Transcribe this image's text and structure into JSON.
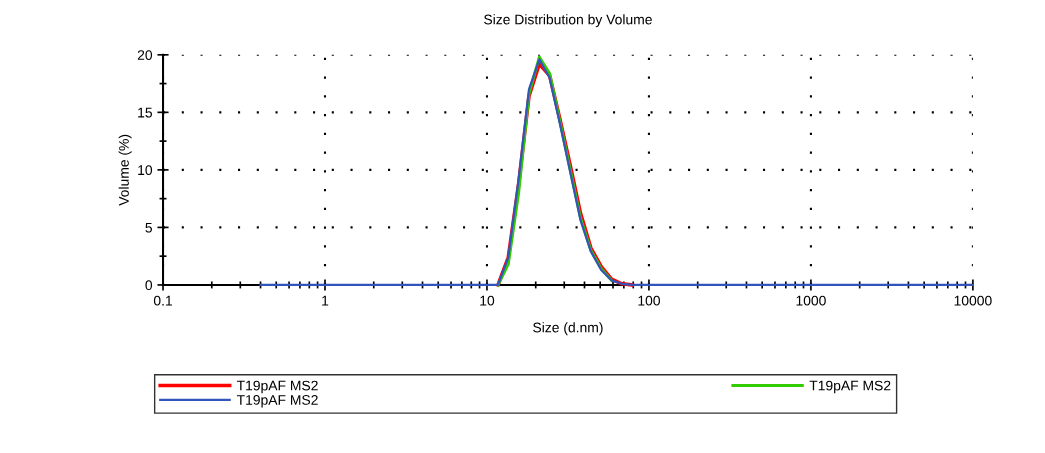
{
  "chart_data": {
    "type": "line",
    "title": "Size Distribution by Volume",
    "xlabel": "Size (d.nm)",
    "ylabel": "Volume (%)",
    "x": [
      0.4,
      0.4632,
      0.5365,
      0.6213,
      0.7195,
      0.8332,
      0.9649,
      1.117,
      1.294,
      1.499,
      1.736,
      2.01,
      2.328,
      2.696,
      3.122,
      3.615,
      4.187,
      4.849,
      5.615,
      6.503,
      7.531,
      8.721,
      10.1,
      11.7,
      13.54,
      15.69,
      18.17,
      21.04,
      24.36,
      28.21,
      32.67,
      37.84,
      43.82,
      50.75,
      58.77,
      68.06,
      78.82,
      91.28,
      105.7,
      122.4,
      141.8,
      164.2,
      190.1,
      220.2,
      255.0,
      295.3,
      342.0,
      396.1,
      458.7,
      531.2,
      615.1,
      712.4,
      825.0,
      955.4,
      1106,
      1281,
      1484,
      1718,
      1990,
      2305,
      2669,
      3091,
      3580,
      4145,
      4801,
      5560,
      6439,
      7456,
      8635,
      10000
    ],
    "series": [
      {
        "name": "T19pAF MS2",
        "color": "#ff0000",
        "values": [
          null,
          null,
          null,
          null,
          null,
          null,
          null,
          null,
          null,
          null,
          null,
          null,
          null,
          null,
          null,
          null,
          null,
          null,
          null,
          null,
          null,
          null,
          null,
          0,
          2.4,
          8.8,
          16.4,
          19.2,
          18.2,
          14.4,
          10.4,
          6.2,
          3.2,
          1.6,
          0.5,
          0.1,
          0,
          null,
          null,
          null,
          null,
          null,
          null,
          null,
          null,
          null,
          null,
          null,
          null,
          null,
          null,
          null,
          null,
          null,
          null,
          null,
          null,
          null,
          null,
          null,
          null,
          null,
          null,
          null,
          null,
          null,
          null,
          null,
          null,
          null
        ]
      },
      {
        "name": "T19pAF MS2",
        "color": "#33cc00",
        "values": [
          null,
          null,
          null,
          null,
          null,
          null,
          null,
          null,
          null,
          null,
          null,
          null,
          null,
          null,
          null,
          null,
          null,
          null,
          null,
          null,
          null,
          null,
          null,
          0,
          1.8,
          8.0,
          16.6,
          19.8,
          18.4,
          14.2,
          10.0,
          5.8,
          3.0,
          1.4,
          0.4,
          null,
          null,
          null,
          null,
          null,
          null,
          null,
          null,
          null,
          null,
          null,
          null,
          null,
          null,
          null,
          null,
          null,
          null,
          null,
          null,
          null,
          null,
          null,
          null,
          null,
          null,
          null,
          null,
          null,
          null,
          null,
          null,
          null,
          null,
          null
        ]
      },
      {
        "name": "T19pAF MS2",
        "color": "#3355bb",
        "values": [
          0,
          0,
          0,
          0,
          0,
          0,
          0,
          0,
          0,
          0,
          0,
          0,
          0,
          0,
          0,
          0,
          0,
          0,
          0,
          0,
          0,
          0,
          0,
          0,
          2.4,
          9.2,
          17.0,
          19.6,
          18.0,
          14.0,
          9.8,
          5.6,
          2.9,
          1.3,
          0.4,
          0.1,
          0,
          0,
          0,
          0,
          0,
          0,
          0,
          0,
          0,
          0,
          0,
          0,
          0,
          0,
          0,
          0,
          0,
          0,
          0,
          0,
          0,
          0,
          0,
          0,
          0,
          0,
          0,
          0,
          0,
          0,
          0,
          0,
          0,
          0
        ]
      }
    ],
    "log": "x",
    "xlim": [
      0.1,
      10000
    ],
    "xticks": [
      0.1,
      1,
      10,
      100,
      1000,
      10000
    ],
    "ylim": [
      0,
      20
    ],
    "yticks": [
      0,
      5,
      10,
      15,
      20
    ],
    "grid": true,
    "legend": "bottom",
    "marker": "none",
    "line_style": "solid"
  }
}
